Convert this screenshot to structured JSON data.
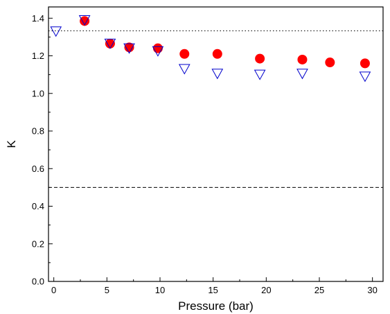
{
  "chart_data": {
    "type": "scatter",
    "xlabel": "Pressure (bar)",
    "ylabel": "K",
    "xlim": [
      -0.5,
      31
    ],
    "ylim": [
      0,
      1.46
    ],
    "x_ticks": [
      0,
      5,
      10,
      15,
      20,
      25,
      30
    ],
    "y_ticks": [
      0.0,
      0.2,
      0.4,
      0.6,
      0.8,
      1.0,
      1.2,
      1.4
    ],
    "x_tick_labels": [
      "0",
      "5",
      "10",
      "15",
      "20",
      "25",
      "30"
    ],
    "y_tick_labels": [
      "0.0",
      "0.2",
      "0.4",
      "0.6",
      "0.8",
      "1.0",
      "1.2",
      "1.4"
    ],
    "grid": false,
    "series": [
      {
        "marker": "circle-filled",
        "color": "#ff0000",
        "points": [
          {
            "x": 2.9,
            "y": 1.385
          },
          {
            "x": 5.3,
            "y": 1.265
          },
          {
            "x": 7.1,
            "y": 1.245
          },
          {
            "x": 9.8,
            "y": 1.24
          },
          {
            "x": 12.3,
            "y": 1.21
          },
          {
            "x": 15.4,
            "y": 1.21
          },
          {
            "x": 19.4,
            "y": 1.185
          },
          {
            "x": 23.4,
            "y": 1.18
          },
          {
            "x": 26.0,
            "y": 1.165
          },
          {
            "x": 29.3,
            "y": 1.16
          }
        ]
      },
      {
        "marker": "triangle-down-open",
        "color": "#0000cc",
        "points": [
          {
            "x": 0.2,
            "y": 1.33
          },
          {
            "x": 2.9,
            "y": 1.39
          },
          {
            "x": 5.3,
            "y": 1.265
          },
          {
            "x": 7.1,
            "y": 1.24
          },
          {
            "x": 9.8,
            "y": 1.225
          },
          {
            "x": 12.3,
            "y": 1.13
          },
          {
            "x": 15.4,
            "y": 1.105
          },
          {
            "x": 19.4,
            "y": 1.1
          },
          {
            "x": 23.4,
            "y": 1.105
          },
          {
            "x": 29.3,
            "y": 1.09
          }
        ]
      }
    ],
    "reference_lines": [
      {
        "style": "dotted",
        "y": 1.333
      },
      {
        "style": "dashed",
        "y": 0.5
      }
    ]
  }
}
